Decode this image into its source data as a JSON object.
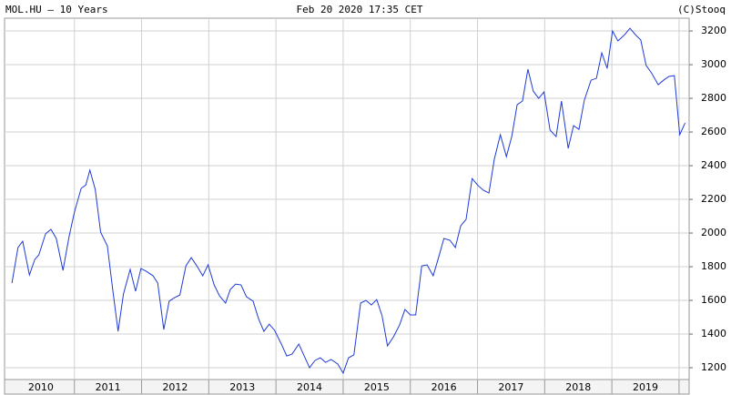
{
  "chart_data": {
    "type": "line",
    "title": "MOL.HU – 10 Years",
    "subtitle": "Feb 20 2020 17:35 CET",
    "source": "(C)Stooq",
    "color": "#1f3bd6",
    "grid": true,
    "x": [
      2010.07,
      2010.16,
      2010.23,
      2010.33,
      2010.41,
      2010.47,
      2010.57,
      2010.65,
      2010.73,
      2010.83,
      2010.92,
      2011.0,
      2011.1,
      2011.17,
      2011.23,
      2011.31,
      2011.39,
      2011.49,
      2011.57,
      2011.65,
      2011.73,
      2011.83,
      2011.91,
      2011.99,
      2012.07,
      2012.17,
      2012.24,
      2012.33,
      2012.41,
      2012.49,
      2012.57,
      2012.66,
      2012.74,
      2012.83,
      2012.91,
      2012.99,
      2013.08,
      2013.16,
      2013.25,
      2013.32,
      2013.4,
      2013.48,
      2013.56,
      2013.66,
      2013.74,
      2013.82,
      2013.9,
      2013.98,
      2014.08,
      2014.16,
      2014.24,
      2014.34,
      2014.42,
      2014.5,
      2014.58,
      2014.66,
      2014.74,
      2014.82,
      2014.92,
      2015.0,
      2015.08,
      2015.16,
      2015.26,
      2015.34,
      2015.42,
      2015.5,
      2015.58,
      2015.66,
      2015.75,
      2015.84,
      2015.92,
      2016.0,
      2016.08,
      2016.17,
      2016.25,
      2016.34,
      2016.42,
      2016.5,
      2016.59,
      2016.67,
      2016.75,
      2016.83,
      2016.92,
      2017.01,
      2017.09,
      2017.17,
      2017.25,
      2017.34,
      2017.43,
      2017.51,
      2017.59,
      2017.67,
      2017.75,
      2017.83,
      2017.91,
      2017.99,
      2018.08,
      2018.17,
      2018.25,
      2018.35,
      2018.43,
      2018.51,
      2018.59,
      2018.69,
      2018.77,
      2018.85,
      2018.93,
      2019.01,
      2019.09,
      2019.19,
      2019.27,
      2019.35,
      2019.43,
      2019.51,
      2019.59,
      2019.69,
      2019.77,
      2019.85,
      2019.93,
      2020.01,
      2020.09
    ],
    "values": [
      1703,
      1914,
      1951,
      1751,
      1843,
      1870,
      1995,
      2022,
      1968,
      1778,
      1978,
      2124,
      2265,
      2286,
      2373,
      2259,
      2005,
      1924,
      1665,
      1416,
      1638,
      1784,
      1654,
      1789,
      1773,
      1746,
      1703,
      1427,
      1595,
      1616,
      1632,
      1805,
      1854,
      1800,
      1746,
      1811,
      1692,
      1627,
      1584,
      1665,
      1697,
      1692,
      1622,
      1595,
      1492,
      1416,
      1459,
      1422,
      1341,
      1270,
      1281,
      1341,
      1270,
      1200,
      1243,
      1259,
      1232,
      1249,
      1222,
      1168,
      1259,
      1276,
      1584,
      1600,
      1573,
      1605,
      1508,
      1330,
      1384,
      1454,
      1546,
      1514,
      1514,
      1805,
      1811,
      1746,
      1854,
      1968,
      1957,
      1914,
      2043,
      2081,
      2324,
      2281,
      2254,
      2238,
      2438,
      2584,
      2454,
      2573,
      2762,
      2784,
      2973,
      2843,
      2800,
      2838,
      2611,
      2573,
      2784,
      2503,
      2638,
      2616,
      2789,
      2908,
      2919,
      3070,
      2978,
      3200,
      3141,
      3178,
      3216,
      3178,
      3146,
      2995,
      2951,
      2881,
      2908,
      2930,
      2935,
      2584,
      2654
    ],
    "xlim": [
      2009.96,
      2020.15
    ],
    "ylim": [
      1130,
      3276
    ],
    "yticks": [
      1200,
      1400,
      1600,
      1800,
      2000,
      2200,
      2400,
      2600,
      2800,
      3000,
      3200
    ],
    "xticks": [
      {
        "value": 2010,
        "label": "2010"
      },
      {
        "value": 2011,
        "label": "2011"
      },
      {
        "value": 2012,
        "label": "2012"
      },
      {
        "value": 2013,
        "label": "2013"
      },
      {
        "value": 2014,
        "label": "2014"
      },
      {
        "value": 2015,
        "label": "2015"
      },
      {
        "value": 2016,
        "label": "2016"
      },
      {
        "value": 2017,
        "label": "2017"
      },
      {
        "value": 2018,
        "label": "2018"
      },
      {
        "value": 2019,
        "label": "2019"
      }
    ]
  }
}
